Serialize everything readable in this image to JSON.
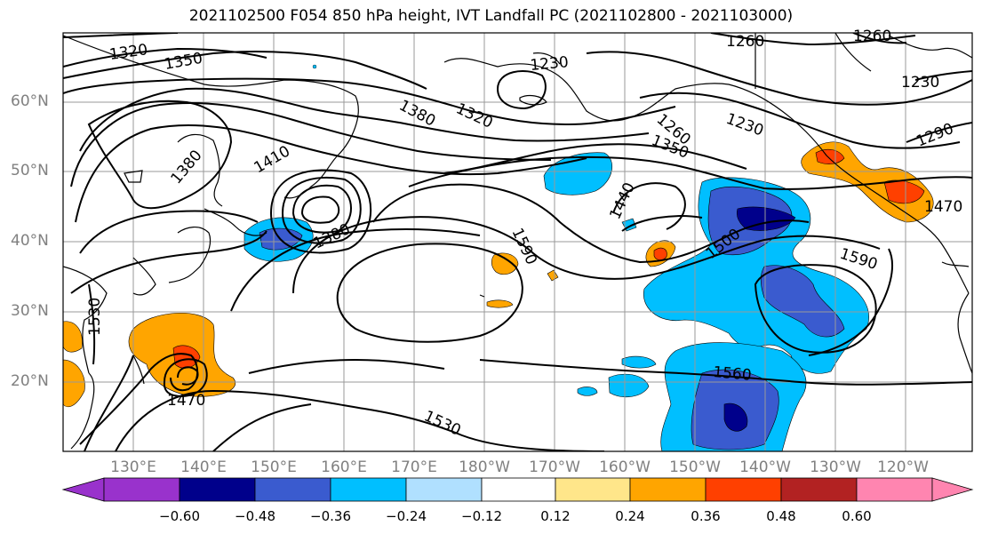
{
  "title": "2021102500 F054 850 hPa height, IVT Landfall PC (2021102800 - 2021103000)",
  "lat_labels": [
    "60°N",
    "50°N",
    "40°N",
    "30°N",
    "20°N"
  ],
  "lon_labels": [
    "130°E",
    "140°E",
    "150°E",
    "160°E",
    "170°E",
    "180°W",
    "170°W",
    "160°W",
    "150°W",
    "140°W",
    "130°W",
    "120°W"
  ],
  "contour_labels": [
    "1320",
    "1350",
    "1380",
    "1410",
    "1260",
    "1260",
    "1230",
    "1230",
    "1230",
    "1290",
    "1380",
    "1320",
    "1260",
    "1350",
    "1440",
    "1590",
    "1500",
    "1590",
    "1470",
    "1530",
    "1470",
    "1560",
    "1530",
    "1380"
  ],
  "colorbar": {
    "ticks": [
      "−0.60",
      "−0.48",
      "−0.36",
      "−0.24",
      "−0.12",
      "0.12",
      "0.24",
      "0.36",
      "0.48",
      "0.60"
    ],
    "colors": [
      "#9932cc",
      "#00008b",
      "#3a5bcf",
      "#00bfff",
      "#b0e0ff",
      "#ffffff",
      "#ffe68a",
      "#ffa500",
      "#ff4000",
      "#b22222",
      "#ff85b0"
    ]
  }
}
